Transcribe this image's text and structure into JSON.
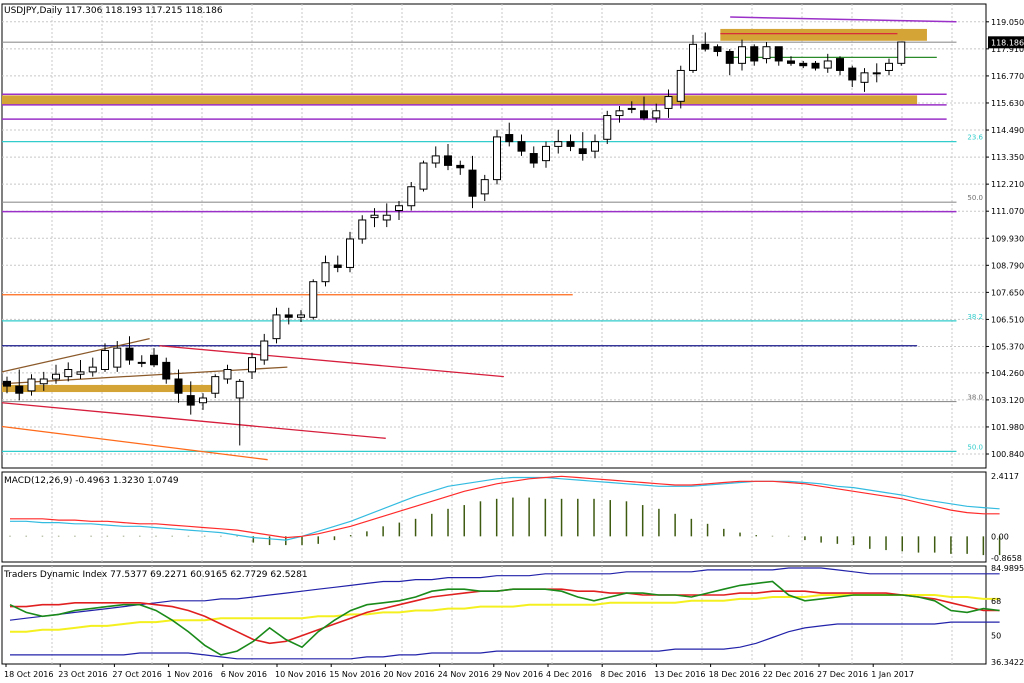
{
  "header": {
    "main_title": "USDJPY,Daily  117.306 118.193 117.215 118.186",
    "macd_title": "MACD(12,26,9) -0.4963 1.3230 1.0749",
    "tdi_title": "Traders Dynamic Index 77.5377 69.2271 60.9165 62.7729 62.5281"
  },
  "price_labels": [
    "119.050",
    "117.910",
    "116.770",
    "115.630",
    "114.490",
    "113.350",
    "112.210",
    "111.070",
    "109.930",
    "108.790",
    "107.650",
    "106.510",
    "105.370",
    "104.260",
    "103.120",
    "101.980",
    "100.840"
  ],
  "current_price": "118.186",
  "macd_labels": [
    "2.4117",
    "0.00",
    "-0.8658"
  ],
  "tdi_labels": [
    "84.9895",
    "68",
    "50",
    "36.3422"
  ],
  "fib_labels": [
    "23.6",
    "50.0",
    "38.2",
    "38.0",
    "50.0"
  ],
  "date_labels": [
    "18 Oct 2016",
    "23 Oct 2016",
    "27 Oct 2016",
    "1 Nov 2016",
    "6 Nov 2016",
    "10 Nov 2016",
    "15 Nov 2016",
    "20 Nov 2016",
    "24 Nov 2016",
    "29 Nov 2016",
    "4 Dec 2016",
    "8 Dec 2016",
    "13 Dec 2016",
    "18 Dec 2016",
    "22 Dec 2016",
    "27 Dec 2016",
    "1 Jan 2017"
  ],
  "colors": {
    "grid": "#c8c8c8",
    "bull": "#ffffff",
    "bear": "#000000",
    "zone": "#d4a437",
    "purple": "#9b30c8",
    "cyan": "#33cccc",
    "orange": "#ff6a1a",
    "red": "#d61e3c",
    "navy": "#1a1a8c",
    "green": "#2a8a2a",
    "macd_signal": "#ff2a2a",
    "macd_main": "#33bbe0",
    "macd_hist": "#3d5a10",
    "tdi_blue": "#2222aa",
    "tdi_yellow": "#f4f020",
    "tdi_red": "#e02020",
    "tdi_green": "#1a8a1a"
  },
  "chart_data": {
    "type": "candlestick",
    "symbol": "USDJPY",
    "timeframe": "Daily",
    "ylim": [
      100.25,
      119.8
    ],
    "candles": [
      {
        "o": 103.9,
        "h": 104.1,
        "l": 103.4,
        "c": 103.7
      },
      {
        "o": 103.7,
        "h": 104.4,
        "l": 103.1,
        "c": 103.4
      },
      {
        "o": 103.5,
        "h": 104.2,
        "l": 103.3,
        "c": 104.0
      },
      {
        "o": 103.8,
        "h": 104.3,
        "l": 103.5,
        "c": 104.0
      },
      {
        "o": 104.0,
        "h": 104.6,
        "l": 103.8,
        "c": 104.2
      },
      {
        "o": 104.1,
        "h": 104.7,
        "l": 103.9,
        "c": 104.4
      },
      {
        "o": 104.2,
        "h": 104.8,
        "l": 104.0,
        "c": 104.3
      },
      {
        "o": 104.3,
        "h": 104.9,
        "l": 104.1,
        "c": 104.5
      },
      {
        "o": 104.4,
        "h": 105.5,
        "l": 104.3,
        "c": 105.2
      },
      {
        "o": 104.5,
        "h": 105.6,
        "l": 104.3,
        "c": 105.3
      },
      {
        "o": 105.3,
        "h": 105.8,
        "l": 104.6,
        "c": 104.8
      },
      {
        "o": 104.7,
        "h": 105.0,
        "l": 104.5,
        "c": 104.7
      },
      {
        "o": 105.0,
        "h": 105.3,
        "l": 104.5,
        "c": 104.6
      },
      {
        "o": 104.7,
        "h": 104.9,
        "l": 103.8,
        "c": 104.0
      },
      {
        "o": 104.0,
        "h": 104.4,
        "l": 103.0,
        "c": 103.4
      },
      {
        "o": 103.3,
        "h": 103.9,
        "l": 102.5,
        "c": 102.9
      },
      {
        "o": 103.0,
        "h": 103.4,
        "l": 102.7,
        "c": 103.2
      },
      {
        "o": 103.4,
        "h": 104.2,
        "l": 103.2,
        "c": 104.1
      },
      {
        "o": 104.0,
        "h": 104.6,
        "l": 103.8,
        "c": 104.4
      },
      {
        "o": 103.2,
        "h": 104.0,
        "l": 101.2,
        "c": 103.9
      },
      {
        "o": 104.3,
        "h": 105.1,
        "l": 104.0,
        "c": 104.9
      },
      {
        "o": 104.8,
        "h": 105.9,
        "l": 104.6,
        "c": 105.6
      },
      {
        "o": 105.7,
        "h": 107.0,
        "l": 105.5,
        "c": 106.7
      },
      {
        "o": 106.7,
        "h": 107.0,
        "l": 106.3,
        "c": 106.6
      },
      {
        "o": 106.6,
        "h": 106.9,
        "l": 106.4,
        "c": 106.7
      },
      {
        "o": 106.6,
        "h": 108.2,
        "l": 106.5,
        "c": 108.1
      },
      {
        "o": 108.1,
        "h": 109.2,
        "l": 107.9,
        "c": 108.9
      },
      {
        "o": 108.8,
        "h": 109.2,
        "l": 108.5,
        "c": 108.7
      },
      {
        "o": 108.7,
        "h": 110.2,
        "l": 108.5,
        "c": 109.9
      },
      {
        "o": 109.9,
        "h": 110.9,
        "l": 109.7,
        "c": 110.7
      },
      {
        "o": 110.8,
        "h": 111.2,
        "l": 110.4,
        "c": 110.9
      },
      {
        "o": 110.7,
        "h": 111.4,
        "l": 110.4,
        "c": 110.9
      },
      {
        "o": 111.1,
        "h": 111.5,
        "l": 110.7,
        "c": 111.3
      },
      {
        "o": 111.3,
        "h": 112.3,
        "l": 111.1,
        "c": 112.1
      },
      {
        "o": 112.0,
        "h": 113.2,
        "l": 111.9,
        "c": 113.1
      },
      {
        "o": 113.1,
        "h": 113.8,
        "l": 112.9,
        "c": 113.4
      },
      {
        "o": 113.4,
        "h": 113.9,
        "l": 112.8,
        "c": 113.0
      },
      {
        "o": 113.0,
        "h": 113.2,
        "l": 112.6,
        "c": 112.9
      },
      {
        "o": 112.8,
        "h": 113.4,
        "l": 111.2,
        "c": 111.7
      },
      {
        "o": 111.8,
        "h": 112.6,
        "l": 111.5,
        "c": 112.4
      },
      {
        "o": 112.4,
        "h": 114.5,
        "l": 112.2,
        "c": 114.2
      },
      {
        "o": 114.3,
        "h": 114.8,
        "l": 113.8,
        "c": 114.0
      },
      {
        "o": 114.0,
        "h": 114.3,
        "l": 113.4,
        "c": 113.6
      },
      {
        "o": 113.5,
        "h": 113.8,
        "l": 112.9,
        "c": 113.1
      },
      {
        "o": 113.2,
        "h": 114.0,
        "l": 112.9,
        "c": 113.8
      },
      {
        "o": 113.8,
        "h": 114.5,
        "l": 113.5,
        "c": 114.0
      },
      {
        "o": 114.0,
        "h": 114.3,
        "l": 113.6,
        "c": 113.8
      },
      {
        "o": 113.7,
        "h": 114.4,
        "l": 113.2,
        "c": 113.5
      },
      {
        "o": 113.6,
        "h": 114.3,
        "l": 113.3,
        "c": 114.0
      },
      {
        "o": 114.1,
        "h": 115.3,
        "l": 113.9,
        "c": 115.1
      },
      {
        "o": 115.1,
        "h": 115.5,
        "l": 114.8,
        "c": 115.3
      },
      {
        "o": 115.4,
        "h": 115.7,
        "l": 115.2,
        "c": 115.4
      },
      {
        "o": 115.3,
        "h": 115.9,
        "l": 114.9,
        "c": 115.0
      },
      {
        "o": 115.0,
        "h": 115.6,
        "l": 114.8,
        "c": 115.3
      },
      {
        "o": 115.4,
        "h": 116.2,
        "l": 115.0,
        "c": 115.9
      },
      {
        "o": 115.7,
        "h": 117.2,
        "l": 115.4,
        "c": 117.0
      },
      {
        "o": 117.0,
        "h": 118.5,
        "l": 116.9,
        "c": 118.1
      },
      {
        "o": 118.1,
        "h": 118.6,
        "l": 117.8,
        "c": 117.9
      },
      {
        "o": 118.0,
        "h": 118.1,
        "l": 117.6,
        "c": 117.8
      },
      {
        "o": 117.8,
        "h": 117.9,
        "l": 116.8,
        "c": 117.3
      },
      {
        "o": 117.3,
        "h": 118.3,
        "l": 117.0,
        "c": 118.0
      },
      {
        "o": 118.0,
        "h": 118.1,
        "l": 117.2,
        "c": 117.4
      },
      {
        "o": 117.5,
        "h": 118.2,
        "l": 117.3,
        "c": 118.0
      },
      {
        "o": 118.0,
        "h": 118.0,
        "l": 117.2,
        "c": 117.4
      },
      {
        "o": 117.4,
        "h": 117.6,
        "l": 117.2,
        "c": 117.3
      },
      {
        "o": 117.3,
        "h": 117.4,
        "l": 117.1,
        "c": 117.2
      },
      {
        "o": 117.3,
        "h": 117.4,
        "l": 117.0,
        "c": 117.1
      },
      {
        "o": 117.1,
        "h": 117.7,
        "l": 116.9,
        "c": 117.4
      },
      {
        "o": 117.5,
        "h": 117.6,
        "l": 116.8,
        "c": 117.0
      },
      {
        "o": 117.1,
        "h": 117.2,
        "l": 116.3,
        "c": 116.6
      },
      {
        "o": 116.5,
        "h": 117.1,
        "l": 116.1,
        "c": 116.9
      },
      {
        "o": 116.9,
        "h": 117.3,
        "l": 116.5,
        "c": 116.9
      },
      {
        "o": 117.0,
        "h": 117.5,
        "l": 116.8,
        "c": 117.3
      },
      {
        "o": 117.3,
        "h": 118.2,
        "l": 117.2,
        "c": 118.2
      }
    ],
    "hlines": [
      {
        "y": 119.05,
        "x0": 0.74,
        "x1": 0.97,
        "color": "purple",
        "y2": 119.25
      },
      {
        "y": 118.55,
        "x0": 0.73,
        "x1": 0.91,
        "color": "red"
      },
      {
        "y": 118.19,
        "x0": 0.0,
        "x1": 0.97,
        "color": "grey"
      },
      {
        "y": 117.55,
        "x0": 0.74,
        "x1": 0.95,
        "color": "green"
      },
      {
        "y": 116.0,
        "x0": 0.0,
        "x1": 0.96,
        "color": "purple"
      },
      {
        "y": 115.55,
        "x0": 0.0,
        "x1": 0.96,
        "color": "purple"
      },
      {
        "y": 114.95,
        "x0": 0.0,
        "x1": 0.96,
        "color": "purple"
      },
      {
        "y": 114.0,
        "x0": 0.0,
        "x1": 0.97,
        "color": "cyan"
      },
      {
        "y": 111.45,
        "x0": 0.0,
        "x1": 0.97,
        "color": "grey"
      },
      {
        "y": 111.05,
        "x0": 0.0,
        "x1": 0.97,
        "color": "purple"
      },
      {
        "y": 107.55,
        "x0": 0.0,
        "x1": 0.58,
        "color": "orange"
      },
      {
        "y": 106.45,
        "x0": 0.0,
        "x1": 0.97,
        "color": "cyan"
      },
      {
        "y": 105.4,
        "x0": 0.0,
        "x1": 0.93,
        "color": "navy"
      },
      {
        "y": 103.05,
        "x0": 0.0,
        "x1": 0.97,
        "color": "grey"
      },
      {
        "y": 100.95,
        "x0": 0.0,
        "x1": 0.97,
        "color": "cyan"
      }
    ],
    "zones": [
      {
        "y_top": 118.75,
        "y_bot": 118.25,
        "x0": 0.73,
        "x1": 0.94
      },
      {
        "y_top": 115.95,
        "y_bot": 115.55,
        "x0": 0.0,
        "x1": 0.93
      },
      {
        "y_top": 103.75,
        "y_bot": 103.45,
        "x0": 0.0,
        "x1": 0.22
      }
    ],
    "trendlines": [
      {
        "x0": 0.0,
        "y0": 104.3,
        "x1": 0.15,
        "y1": 105.7,
        "color": "brown"
      },
      {
        "x0": 0.0,
        "y0": 103.8,
        "x1": 0.29,
        "y1": 104.5,
        "color": "brown"
      },
      {
        "x0": 0.16,
        "y0": 105.4,
        "x1": 0.51,
        "y1": 104.1,
        "color": "red"
      },
      {
        "x0": 0.0,
        "y0": 103.0,
        "x1": 0.39,
        "y1": 101.5,
        "color": "red"
      },
      {
        "x0": 0.0,
        "y0": 102.0,
        "x1": 0.27,
        "y1": 100.6,
        "color": "orange"
      }
    ],
    "macd": {
      "histogram": [
        0.02,
        0.02,
        0.02,
        0.02,
        0.02,
        0.02,
        0.02,
        0.02,
        0.02,
        0.02,
        0.02,
        0.02,
        0.02,
        0.02,
        0.02,
        -0.25,
        -0.35,
        -0.35,
        -0.35,
        -0.3,
        -0.15,
        0.05,
        0.2,
        0.4,
        0.55,
        0.7,
        0.9,
        1.1,
        1.25,
        1.4,
        1.5,
        1.55,
        1.55,
        1.5,
        1.5,
        1.5,
        1.5,
        1.45,
        1.4,
        1.25,
        1.1,
        0.9,
        0.7,
        0.5,
        0.3,
        0.15,
        0.05,
        0.02,
        0.02,
        -0.15,
        -0.25,
        -0.3,
        -0.35,
        -0.5,
        -0.55,
        -0.6,
        -0.65,
        -0.65,
        -0.7,
        -0.7,
        -0.75,
        -0.75
      ],
      "main": [
        0.6,
        0.6,
        0.55,
        0.55,
        0.5,
        0.5,
        0.45,
        0.4,
        0.4,
        0.35,
        0.3,
        0.25,
        0.2,
        0.15,
        0.05,
        -0.05,
        -0.1,
        -0.15,
        0.0,
        0.2,
        0.4,
        0.6,
        0.85,
        1.1,
        1.35,
        1.6,
        1.8,
        2.0,
        2.1,
        2.2,
        2.3,
        2.35,
        2.35,
        2.35,
        2.3,
        2.25,
        2.2,
        2.15,
        2.1,
        2.05,
        2.0,
        2.0,
        2.0,
        2.05,
        2.1,
        2.15,
        2.2,
        2.2,
        2.2,
        2.15,
        2.1,
        2.0,
        1.95,
        1.85,
        1.75,
        1.65,
        1.5,
        1.4,
        1.3,
        1.2,
        1.15,
        1.1
      ],
      "signal": [
        0.7,
        0.7,
        0.7,
        0.65,
        0.65,
        0.6,
        0.6,
        0.55,
        0.5,
        0.5,
        0.45,
        0.4,
        0.35,
        0.3,
        0.25,
        0.15,
        0.05,
        -0.05,
        0.0,
        0.1,
        0.25,
        0.4,
        0.6,
        0.8,
        1.0,
        1.2,
        1.4,
        1.6,
        1.8,
        1.95,
        2.1,
        2.2,
        2.3,
        2.35,
        2.4,
        2.35,
        2.3,
        2.25,
        2.2,
        2.15,
        2.1,
        2.05,
        2.05,
        2.1,
        2.15,
        2.2,
        2.2,
        2.2,
        2.15,
        2.1,
        2.0,
        1.9,
        1.8,
        1.7,
        1.6,
        1.5,
        1.35,
        1.2,
        1.05,
        0.95,
        0.9,
        0.9
      ],
      "ylim": [
        -0.8658,
        2.4117
      ]
    },
    "tdi": {
      "upper": [
        58,
        59,
        60,
        61,
        62,
        63,
        64,
        65,
        66,
        67,
        68,
        68,
        68,
        69,
        69,
        70,
        71,
        72,
        73,
        74,
        75,
        76,
        77,
        78,
        78,
        79,
        79,
        80,
        80,
        80,
        81,
        81,
        81,
        82,
        82,
        82,
        82,
        82,
        83,
        83,
        83,
        83,
        83,
        84,
        84,
        84,
        84,
        84,
        85,
        85,
        85,
        84,
        83,
        82,
        82,
        82,
        82,
        82,
        82,
        82,
        82,
        82
      ],
      "lower": [
        40,
        40,
        40,
        40,
        40,
        40,
        40,
        40,
        41,
        41,
        41,
        41,
        40,
        39,
        38,
        38,
        38,
        38,
        38,
        38,
        38,
        38,
        39,
        39,
        40,
        40,
        41,
        41,
        41,
        41,
        42,
        42,
        42,
        42,
        42,
        42,
        42,
        42,
        42,
        42,
        42,
        43,
        43,
        43,
        43,
        44,
        46,
        49,
        52,
        54,
        55,
        56,
        56,
        56,
        56,
        56,
        56,
        56,
        57,
        57,
        57,
        57
      ],
      "yellow": [
        52,
        52,
        53,
        53,
        54,
        55,
        55,
        56,
        57,
        57,
        58,
        58,
        58,
        59,
        59,
        59,
        59,
        59,
        59,
        60,
        60,
        61,
        61,
        62,
        62,
        63,
        63,
        64,
        64,
        65,
        65,
        65,
        66,
        66,
        66,
        66,
        66,
        67,
        67,
        67,
        67,
        67,
        68,
        68,
        68,
        69,
        69,
        70,
        70,
        70,
        71,
        71,
        71,
        71,
        71,
        71,
        71,
        71,
        70,
        70,
        69,
        69
      ],
      "red": [
        65,
        65,
        66,
        66,
        67,
        67,
        67,
        67,
        67,
        66,
        65,
        63,
        60,
        56,
        52,
        48,
        46,
        47,
        50,
        53,
        56,
        59,
        62,
        64,
        66,
        68,
        70,
        71,
        72,
        73,
        73,
        74,
        74,
        74,
        74,
        73,
        73,
        72,
        72,
        71,
        71,
        71,
        71,
        71,
        71,
        72,
        72,
        73,
        73,
        73,
        72,
        72,
        72,
        72,
        72,
        71,
        70,
        69,
        67,
        65,
        63,
        63
      ],
      "green": [
        66,
        62,
        60,
        61,
        63,
        64,
        65,
        66,
        66,
        63,
        58,
        52,
        45,
        40,
        42,
        47,
        54,
        48,
        44,
        52,
        58,
        63,
        66,
        67,
        68,
        70,
        73,
        74,
        74,
        73,
        73,
        74,
        74,
        74,
        73,
        70,
        68,
        70,
        72,
        72,
        71,
        71,
        70,
        72,
        74,
        76,
        77,
        78,
        71,
        68,
        69,
        70,
        71,
        71,
        71,
        71,
        70,
        68,
        63,
        62,
        64,
        63
      ],
      "ylim": [
        36.3422,
        84.9895
      ]
    }
  }
}
